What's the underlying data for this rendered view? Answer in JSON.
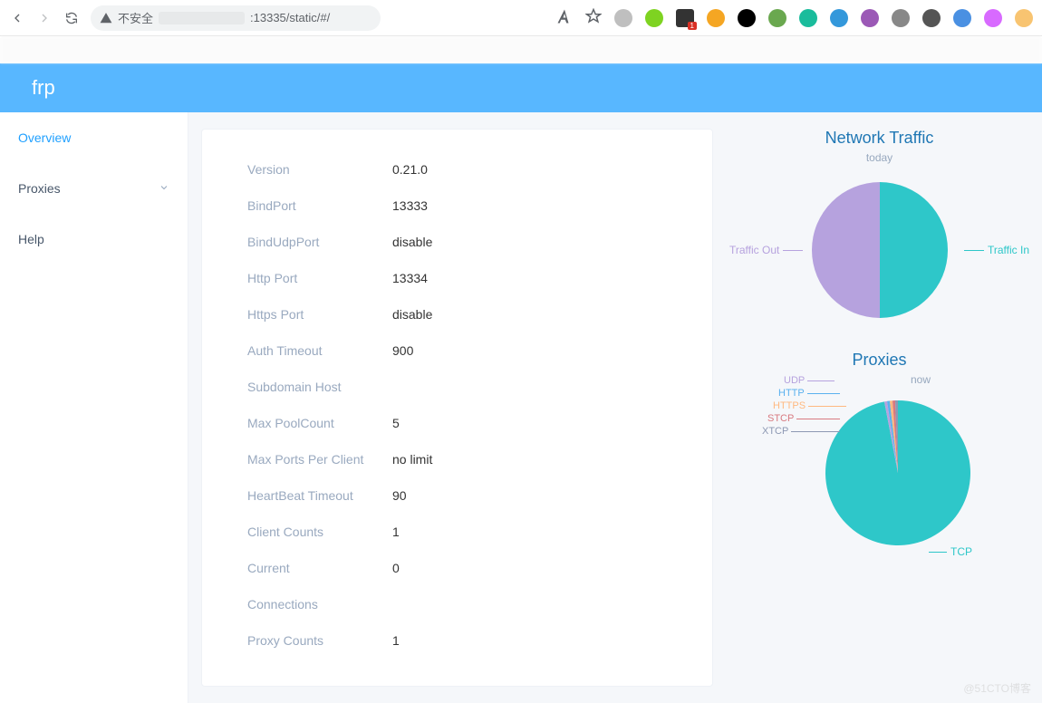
{
  "browser": {
    "security_label": "不安全",
    "url_host_port": ":13335/static/#/",
    "nav": {
      "back": "←",
      "forward": "→",
      "reload": "⟳"
    },
    "ext_colors": [
      "#bfbfbf",
      "#7ed321",
      "#ff5e5e",
      "#f5a623",
      "#000000",
      "#6aa84f",
      "#1abc9c",
      "#3498db",
      "#9b59b6",
      "#888888",
      "#555555",
      "#4a90e2",
      "#d86aff",
      "#f8c471"
    ]
  },
  "app": {
    "title": "frp"
  },
  "sidebar": {
    "items": [
      {
        "label": "Overview",
        "active": true,
        "has_chevron": false
      },
      {
        "label": "Proxies",
        "active": false,
        "has_chevron": true
      },
      {
        "label": "Help",
        "active": false,
        "has_chevron": false
      }
    ]
  },
  "stats": {
    "rows": [
      {
        "label": "Version",
        "value": "0.21.0"
      },
      {
        "label": "BindPort",
        "value": "13333"
      },
      {
        "label": "BindUdpPort",
        "value": "disable"
      },
      {
        "label": "Http Port",
        "value": "13334"
      },
      {
        "label": "Https Port",
        "value": "disable"
      },
      {
        "label": "Auth Timeout",
        "value": "900"
      },
      {
        "label": "Subdomain Host",
        "value": ""
      },
      {
        "label": "Max PoolCount",
        "value": "5"
      },
      {
        "label": "Max Ports Per Client",
        "value": "no limit"
      },
      {
        "label": "HeartBeat Timeout",
        "value": "90"
      },
      {
        "label": "Client Counts",
        "value": "1"
      },
      {
        "label": "Current",
        "value": "0"
      },
      {
        "label": "Connections",
        "value": ""
      },
      {
        "label": "Proxy Counts",
        "value": "1"
      }
    ]
  },
  "traffic_chart": {
    "title": "Network Traffic",
    "subtitle": "today",
    "type": "pie",
    "radius": 75,
    "background_color": "#ffffff",
    "series": [
      {
        "name": "Traffic In",
        "value": 50,
        "color": "#2ec7c9"
      },
      {
        "name": "Traffic Out",
        "value": 50,
        "color": "#b6a2de"
      }
    ],
    "label_font_size": 12,
    "label_color": "#97a8be"
  },
  "proxies_chart": {
    "title": "Proxies",
    "subtitle": "now",
    "type": "pie",
    "radius": 80,
    "background_color": "#ffffff",
    "series": [
      {
        "name": "TCP",
        "value": 97,
        "color": "#2ec7c9"
      },
      {
        "name": "UDP",
        "value": 0.6,
        "color": "#b6a2de"
      },
      {
        "name": "HTTP",
        "value": 0.6,
        "color": "#5ab1ef"
      },
      {
        "name": "HTTPS",
        "value": 0.6,
        "color": "#ffb980"
      },
      {
        "name": "STCP",
        "value": 0.6,
        "color": "#d87a80"
      },
      {
        "name": "XTCP",
        "value": 0.6,
        "color": "#8d98b3"
      }
    ],
    "label_font_size": 12
  },
  "watermark": "@51CTO博客"
}
